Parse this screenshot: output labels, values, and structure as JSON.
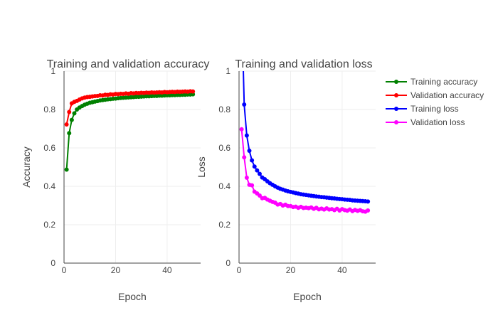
{
  "chart_data": [
    {
      "type": "line",
      "title": "Training and validation accuracy",
      "xlabel": "Epoch",
      "ylabel": "Accuracy",
      "xlim": [
        0,
        53
      ],
      "ylim": [
        0,
        1
      ],
      "x_ticks": [
        "0",
        "20",
        "40"
      ],
      "y_ticks": [
        "0",
        "0.2",
        "0.4",
        "0.6",
        "0.8",
        "1"
      ],
      "grid": true,
      "series": [
        {
          "name": "Training accuracy",
          "color": "#008000",
          "x": [
            1,
            2,
            3,
            4,
            5,
            6,
            7,
            8,
            9,
            10,
            11,
            12,
            13,
            14,
            15,
            16,
            17,
            18,
            19,
            20,
            21,
            22,
            23,
            24,
            25,
            26,
            27,
            28,
            29,
            30,
            31,
            32,
            33,
            34,
            35,
            36,
            37,
            38,
            39,
            40,
            41,
            42,
            43,
            44,
            45,
            46,
            47,
            48,
            49,
            50
          ],
          "values": [
            0.487,
            0.677,
            0.746,
            0.78,
            0.8,
            0.81,
            0.818,
            0.825,
            0.83,
            0.835,
            0.838,
            0.841,
            0.844,
            0.847,
            0.849,
            0.851,
            0.853,
            0.854,
            0.856,
            0.857,
            0.859,
            0.86,
            0.861,
            0.862,
            0.863,
            0.864,
            0.865,
            0.866,
            0.866,
            0.867,
            0.868,
            0.869,
            0.869,
            0.87,
            0.871,
            0.871,
            0.872,
            0.872,
            0.873,
            0.874,
            0.874,
            0.875,
            0.875,
            0.876,
            0.876,
            0.877,
            0.877,
            0.878,
            0.878,
            0.879
          ]
        },
        {
          "name": "Validation accuracy",
          "color": "#ff0000",
          "x": [
            1,
            2,
            3,
            4,
            5,
            6,
            7,
            8,
            9,
            10,
            11,
            12,
            13,
            14,
            15,
            16,
            17,
            18,
            19,
            20,
            21,
            22,
            23,
            24,
            25,
            26,
            27,
            28,
            29,
            30,
            31,
            32,
            33,
            34,
            35,
            36,
            37,
            38,
            39,
            40,
            41,
            42,
            43,
            44,
            45,
            46,
            47,
            48,
            49,
            50
          ],
          "values": [
            0.722,
            0.787,
            0.832,
            0.84,
            0.845,
            0.852,
            0.858,
            0.862,
            0.865,
            0.866,
            0.868,
            0.87,
            0.871,
            0.874,
            0.873,
            0.877,
            0.876,
            0.879,
            0.878,
            0.881,
            0.88,
            0.882,
            0.881,
            0.884,
            0.882,
            0.885,
            0.884,
            0.886,
            0.885,
            0.887,
            0.886,
            0.888,
            0.887,
            0.889,
            0.888,
            0.889,
            0.89,
            0.889,
            0.891,
            0.89,
            0.891,
            0.892,
            0.891,
            0.893,
            0.892,
            0.893,
            0.894,
            0.893,
            0.895,
            0.894
          ]
        }
      ]
    },
    {
      "type": "line",
      "title": "Training and validation loss",
      "xlabel": "Epoch",
      "ylabel": "Loss",
      "xlim": [
        0,
        53
      ],
      "ylim": [
        0,
        1
      ],
      "x_ticks": [
        "0",
        "20",
        "40"
      ],
      "y_ticks": [
        "0",
        "0.2",
        "0.4",
        "0.6",
        "0.8",
        "1"
      ],
      "grid": true,
      "series": [
        {
          "name": "Training loss",
          "color": "#0000ff",
          "x": [
            1,
            2,
            3,
            4,
            5,
            6,
            7,
            8,
            9,
            10,
            11,
            12,
            13,
            14,
            15,
            16,
            17,
            18,
            19,
            20,
            21,
            22,
            23,
            24,
            25,
            26,
            27,
            28,
            29,
            30,
            31,
            32,
            33,
            34,
            35,
            36,
            37,
            38,
            39,
            40,
            41,
            42,
            43,
            44,
            45,
            46,
            47,
            48,
            49,
            50
          ],
          "values": [
            1.35,
            0.826,
            0.665,
            0.585,
            0.535,
            0.503,
            0.483,
            0.465,
            0.446,
            0.437,
            0.426,
            0.416,
            0.408,
            0.4,
            0.393,
            0.387,
            0.383,
            0.378,
            0.374,
            0.371,
            0.368,
            0.365,
            0.362,
            0.359,
            0.357,
            0.355,
            0.353,
            0.351,
            0.349,
            0.347,
            0.346,
            0.344,
            0.343,
            0.341,
            0.34,
            0.338,
            0.337,
            0.335,
            0.334,
            0.333,
            0.331,
            0.33,
            0.329,
            0.327,
            0.326,
            0.325,
            0.324,
            0.323,
            0.322,
            0.321
          ]
        },
        {
          "name": "Validation loss",
          "color": "#ff00ff",
          "x": [
            1,
            2,
            3,
            4,
            5,
            6,
            7,
            8,
            9,
            10,
            11,
            12,
            13,
            14,
            15,
            16,
            17,
            18,
            19,
            20,
            21,
            22,
            23,
            24,
            25,
            26,
            27,
            28,
            29,
            30,
            31,
            32,
            33,
            34,
            35,
            36,
            37,
            38,
            39,
            40,
            41,
            42,
            43,
            44,
            45,
            46,
            47,
            48,
            49,
            50
          ],
          "values": [
            0.697,
            0.551,
            0.445,
            0.408,
            0.405,
            0.372,
            0.363,
            0.352,
            0.338,
            0.34,
            0.331,
            0.325,
            0.319,
            0.315,
            0.305,
            0.308,
            0.3,
            0.304,
            0.297,
            0.297,
            0.292,
            0.294,
            0.288,
            0.293,
            0.287,
            0.289,
            0.286,
            0.29,
            0.283,
            0.288,
            0.28,
            0.284,
            0.279,
            0.285,
            0.279,
            0.281,
            0.276,
            0.283,
            0.274,
            0.281,
            0.276,
            0.273,
            0.279,
            0.271,
            0.277,
            0.272,
            0.276,
            0.27,
            0.268,
            0.274
          ]
        }
      ]
    }
  ]
}
